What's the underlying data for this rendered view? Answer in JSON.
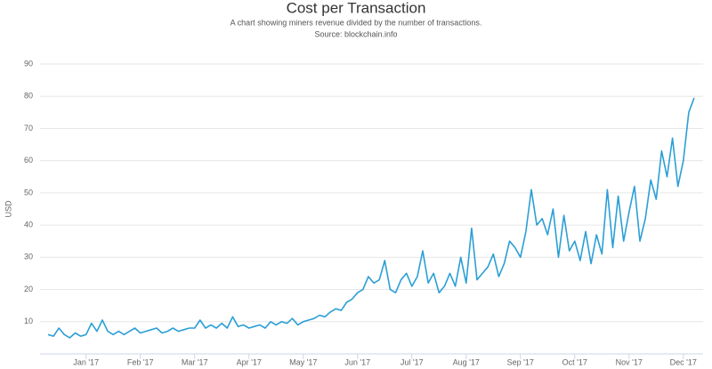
{
  "chart_data": {
    "type": "line",
    "title": "Cost per Transaction",
    "subtitle": "A chart showing miners revenue divided by the number of transactions.",
    "source": "Source: blockchain.info",
    "y_label": "USD",
    "categories": [
      null,
      null,
      null,
      null,
      null,
      null,
      null,
      "Jan '17",
      null,
      null,
      null,
      null,
      null,
      null,
      null,
      null,
      null,
      "Feb '17",
      null,
      null,
      null,
      null,
      null,
      null,
      null,
      null,
      null,
      "Mar '17",
      null,
      null,
      null,
      null,
      null,
      null,
      null,
      null,
      null,
      "Apr '17",
      null,
      null,
      null,
      null,
      null,
      null,
      null,
      null,
      null,
      "May '17",
      null,
      null,
      null,
      null,
      null,
      null,
      null,
      null,
      null,
      "Jun '17",
      null,
      null,
      null,
      null,
      null,
      null,
      null,
      null,
      null,
      "Jul '17",
      null,
      null,
      null,
      null,
      null,
      null,
      null,
      null,
      null,
      "Aug '17",
      null,
      null,
      null,
      null,
      null,
      null,
      null,
      null,
      null,
      "Sep '17",
      null,
      null,
      null,
      null,
      null,
      null,
      null,
      null,
      null,
      "Oct '17",
      null,
      null,
      null,
      null,
      null,
      null,
      null,
      null,
      null,
      "Nov '17",
      null,
      null,
      null,
      null,
      null,
      null,
      null,
      null,
      null,
      "Dec '17",
      null,
      null
    ],
    "series": [
      {
        "name": "Cost per Transaction",
        "color": "#2b9fd6",
        "values": [
          6,
          5.5,
          8,
          6,
          5,
          6.5,
          5.5,
          6,
          9.5,
          7,
          10.5,
          7,
          6,
          7,
          6,
          7,
          8,
          6.5,
          7,
          7.5,
          8,
          6.5,
          7,
          8,
          7,
          7.5,
          8,
          8,
          10.5,
          8,
          9,
          8,
          9.5,
          8,
          11.5,
          8.5,
          9,
          8,
          8.5,
          9,
          8,
          10,
          9,
          10,
          9.5,
          11,
          9,
          10,
          10.5,
          11,
          12,
          11.5,
          13,
          14,
          13.5,
          16,
          17,
          19,
          20,
          24,
          22,
          23,
          29,
          20,
          19,
          23,
          25,
          21,
          24,
          32,
          22,
          25,
          19,
          21,
          25,
          21,
          30,
          22,
          39,
          23,
          25,
          27,
          31,
          24,
          28,
          35,
          33,
          30,
          38,
          51,
          40,
          42,
          37,
          45,
          30,
          43,
          32,
          35,
          29,
          38,
          28,
          37,
          31,
          51,
          33,
          49,
          35,
          44,
          52,
          35,
          42,
          54,
          48,
          63,
          55,
          67,
          52,
          60,
          75,
          79.5
        ]
      }
    ],
    "ylim": [
      0,
      90
    ],
    "yticks": [
      10,
      20,
      30,
      40,
      50,
      60,
      70,
      80,
      90
    ],
    "grid": true
  }
}
